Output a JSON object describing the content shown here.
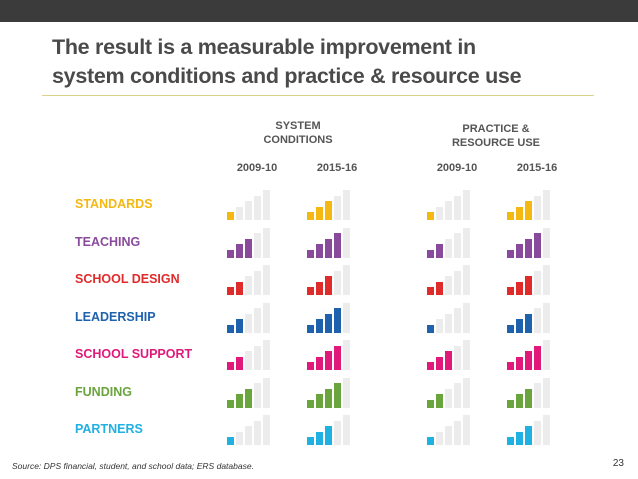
{
  "slide": {
    "title_line1": "The result is a measurable improvement in",
    "title_line2": "system conditions and practice & resource use",
    "source": "Source: DPS financial, student, and school data; ERS database.",
    "page_number": "23"
  },
  "groups": [
    {
      "header_line1": "SYSTEM",
      "header_line2": "CONDITIONS",
      "years": [
        "2009-10",
        "2015-16"
      ]
    },
    {
      "header_line1": "PRACTICE &",
      "header_line2": "RESOURCE USE",
      "years": [
        "2009-10",
        "2015-16"
      ]
    }
  ],
  "gauge_max": 5,
  "empty_bar_color": "#ececec",
  "rows": [
    {
      "label": "STANDARDS",
      "color": "#f5b811",
      "levels": [
        1,
        3,
        1,
        3
      ]
    },
    {
      "label": "TEACHING",
      "color": "#8a4a9c",
      "levels": [
        3,
        4,
        2,
        4
      ]
    },
    {
      "label": "SCHOOL DESIGN",
      "color": "#e02b2b",
      "levels": [
        2,
        3,
        2,
        3
      ]
    },
    {
      "label": "LEADERSHIP",
      "color": "#1e62ad",
      "levels": [
        2,
        4,
        1,
        3
      ]
    },
    {
      "label": "SCHOOL SUPPORT",
      "color": "#e0197a",
      "levels": [
        2,
        4,
        3,
        4
      ]
    },
    {
      "label": "FUNDING",
      "color": "#6aa43c",
      "levels": [
        3,
        4,
        2,
        3
      ]
    },
    {
      "label": "PARTNERS",
      "color": "#1fb1e2",
      "levels": [
        1,
        3,
        1,
        3
      ]
    }
  ]
}
